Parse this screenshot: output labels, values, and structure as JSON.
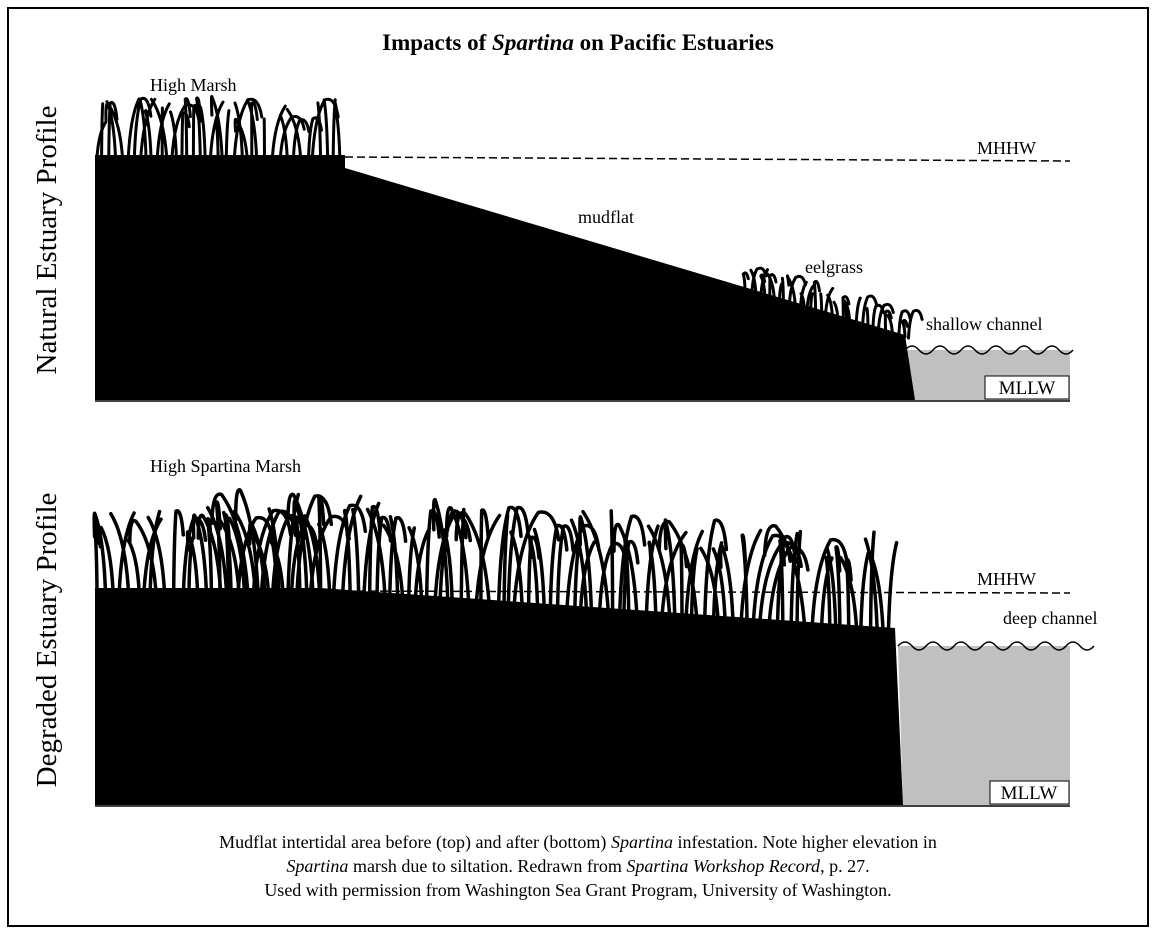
{
  "title": [
    "Impacts of ",
    "Spartina",
    " on Pacific Estuaries"
  ],
  "panels": [
    {
      "label": "Natural Estuary Profile",
      "marsh": "High Marsh",
      "mhhw": "MHHW",
      "mudflat": "mudflat",
      "eelgrass": "eelgrass",
      "channel": "shallow channel",
      "mllw": "MLLW"
    },
    {
      "label": "Degraded Estuary Profile",
      "marsh": "High Spartina Marsh",
      "mhhw": "MHHW",
      "channel": "deep channel",
      "mllw": "MLLW"
    }
  ],
  "caption": [
    [
      "Mudflat intertidal area before (top) and after (bottom) ",
      "Spartina",
      " infestation. Note higher elevation in"
    ],
    [
      "Spartina",
      " marsh due to siltation. Redrawn from ",
      "Spartina Workshop Record",
      ", p. 27."
    ],
    [
      "Used with permission from Washington Sea Grant Program, University of Washington."
    ]
  ]
}
